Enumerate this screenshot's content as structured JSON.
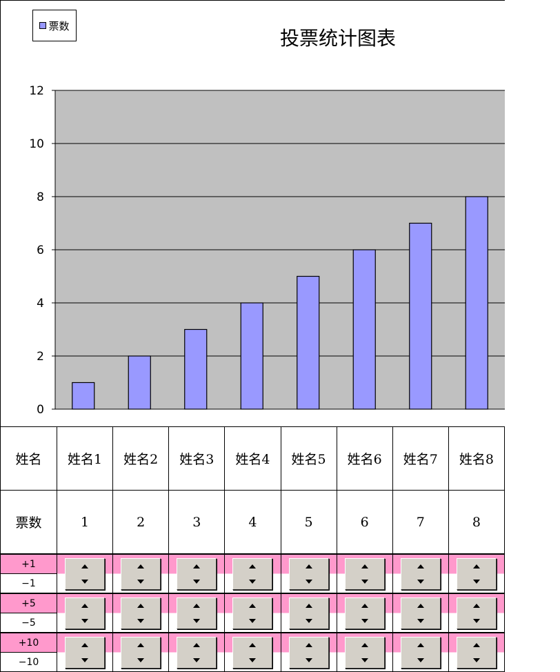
{
  "legend": {
    "label": "票数",
    "color": "#9999ff"
  },
  "chart_data": {
    "type": "bar",
    "title": "投票统计图表",
    "categories": [
      "姓名1",
      "姓名2",
      "姓名3",
      "姓名4",
      "姓名5",
      "姓名6",
      "姓名7",
      "姓名8"
    ],
    "series": [
      {
        "name": "票数",
        "values": [
          1,
          2,
          3,
          4,
          5,
          6,
          7,
          8
        ],
        "color": "#9999ff"
      }
    ],
    "ylim": [
      0,
      12
    ],
    "yticks": [
      0,
      2,
      4,
      6,
      8,
      10,
      12
    ],
    "grid": true,
    "plot_background": "#c0c0c0",
    "legend_position": "top-left"
  },
  "table": {
    "name_header": "姓名",
    "votes_header": "票数",
    "names": [
      "姓名1",
      "姓名2",
      "姓名3",
      "姓名4",
      "姓名5",
      "姓名6",
      "姓名7",
      "姓名8"
    ],
    "votes": [
      "1",
      "2",
      "3",
      "4",
      "5",
      "6",
      "7",
      "8"
    ]
  },
  "controls": [
    {
      "plus": "+1",
      "minus": "−1"
    },
    {
      "plus": "+5",
      "minus": "−5"
    },
    {
      "plus": "+10",
      "minus": "−10"
    }
  ],
  "colors": {
    "highlight_row": "#ff99cc",
    "stepper": "#d4d0c8"
  },
  "icons": {
    "up": "triangle-up-icon",
    "down": "triangle-down-icon"
  }
}
